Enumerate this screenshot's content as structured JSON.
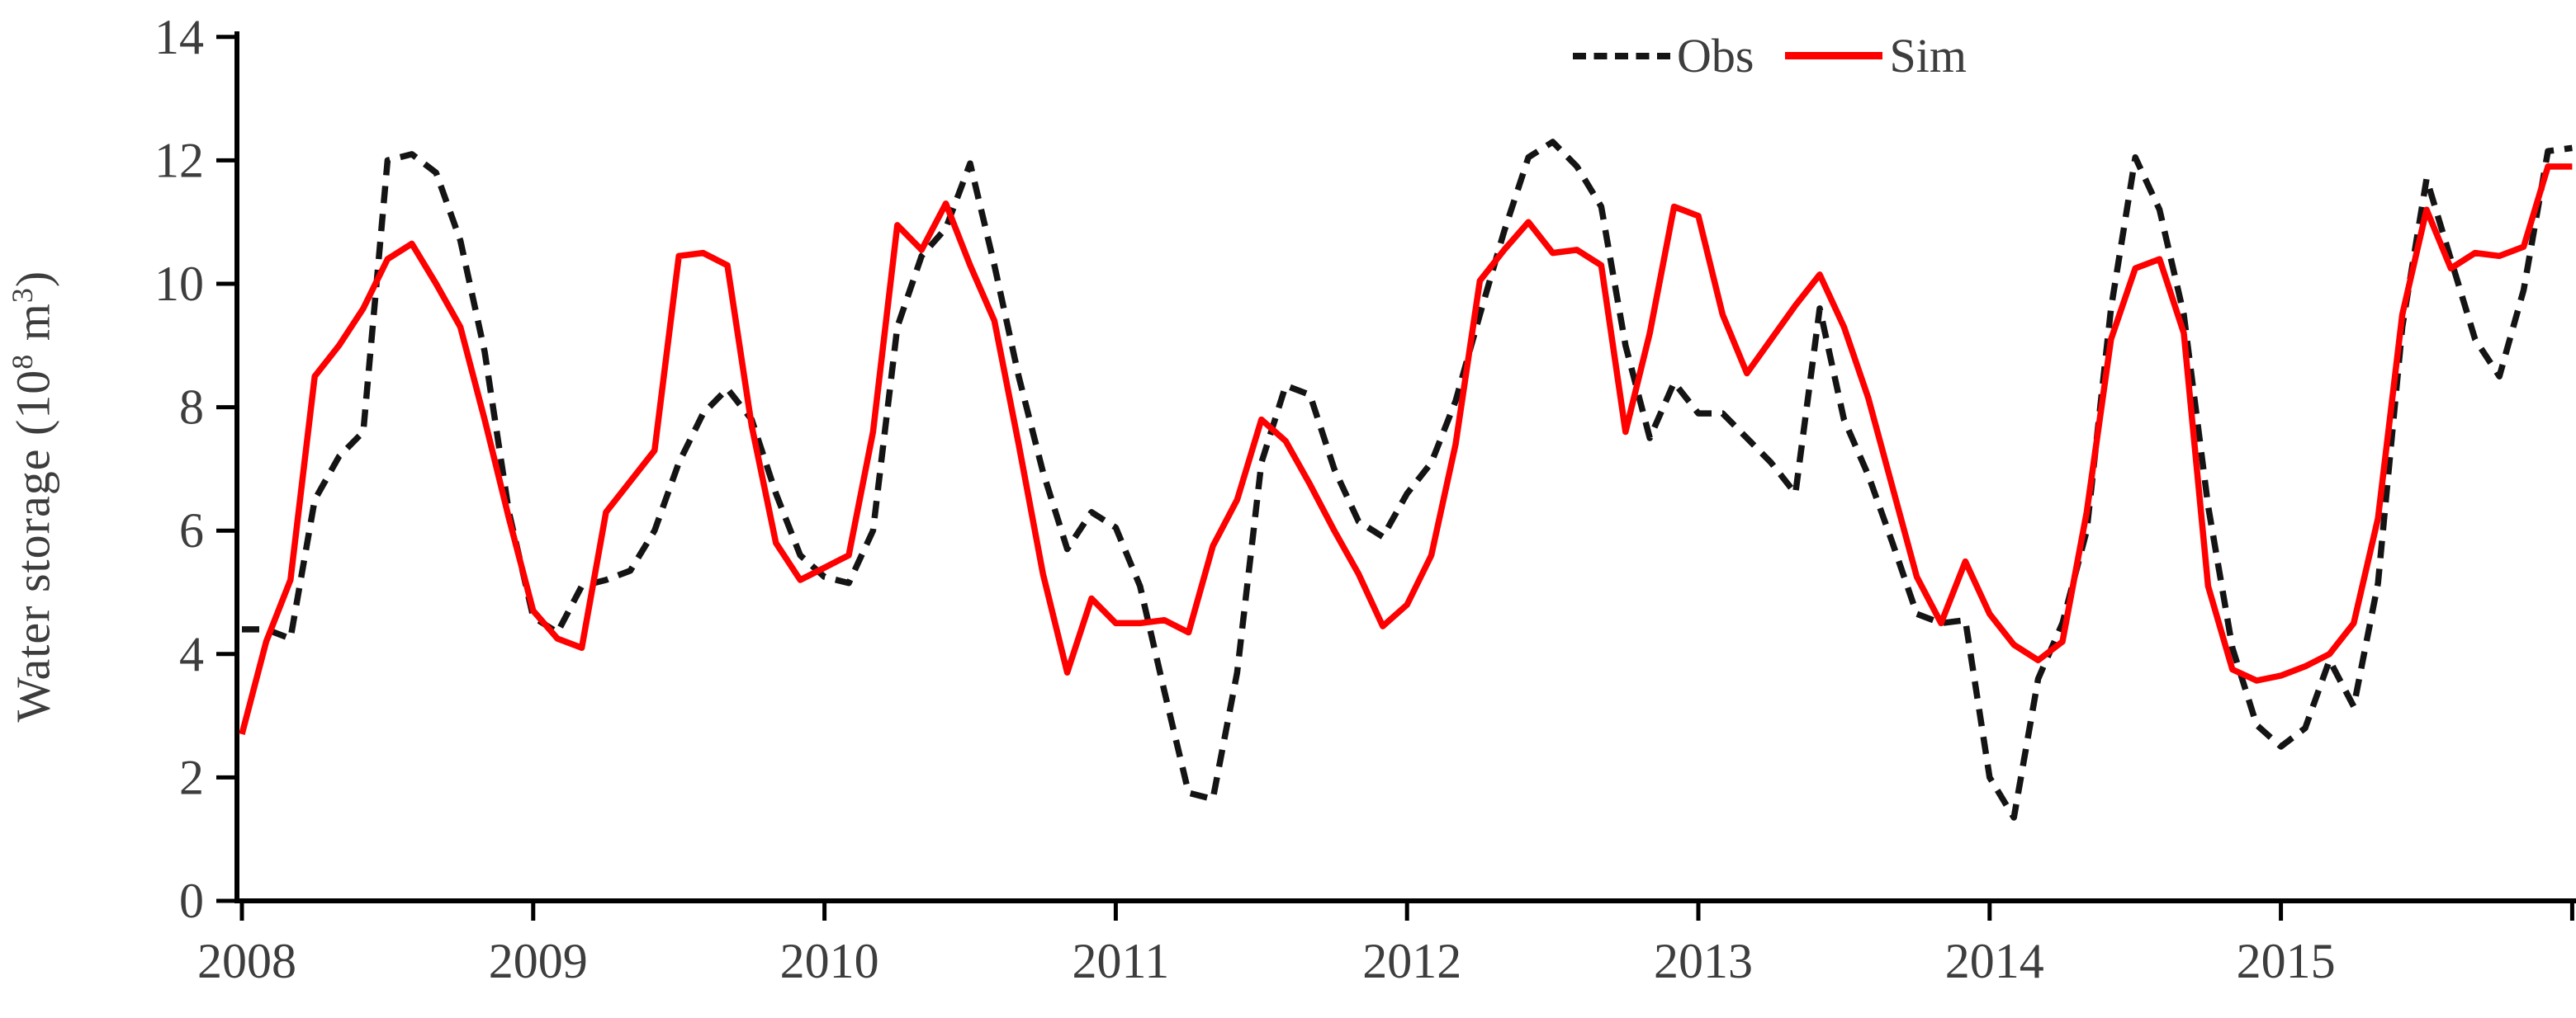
{
  "chart_data": {
    "type": "line",
    "title": "",
    "ylabel": "Water storage (10⁸ m³)",
    "xlabel": "",
    "ylim": [
      0,
      14
    ],
    "y_tick_labels": [
      "0",
      "2",
      "4",
      "6",
      "8",
      "10",
      "12",
      "14"
    ],
    "y_tick_values": [
      0,
      2,
      4,
      6,
      8,
      10,
      12,
      14
    ],
    "x_tick_labels": [
      "2008",
      "2009",
      "2010",
      "2011",
      "2012",
      "2013",
      "2014",
      "2015"
    ],
    "x_axis_note": "monthly points, Jan 2008 through Jan 2016",
    "grid": "off",
    "legend_position": "top-right",
    "series": [
      {
        "name": "Obs",
        "style": "dashed",
        "color": "#141414",
        "values": [
          4.4,
          4.4,
          4.25,
          6.5,
          7.2,
          7.6,
          12.0,
          12.1,
          11.8,
          10.7,
          8.9,
          6.3,
          4.6,
          4.35,
          5.1,
          5.2,
          5.35,
          6.0,
          7.1,
          7.9,
          8.3,
          7.8,
          6.6,
          5.6,
          5.25,
          5.15,
          6.0,
          9.3,
          10.45,
          10.9,
          11.95,
          10.3,
          8.5,
          6.95,
          5.7,
          6.3,
          6.05,
          5.1,
          3.4,
          1.75,
          1.65,
          3.7,
          7.1,
          8.35,
          8.2,
          7.0,
          6.15,
          5.9,
          6.6,
          7.1,
          8.1,
          9.5,
          10.85,
          12.05,
          12.3,
          11.9,
          11.25,
          9.0,
          7.5,
          8.4,
          7.9,
          7.9,
          7.5,
          7.1,
          6.6,
          9.6,
          7.8,
          6.9,
          5.8,
          4.65,
          4.5,
          4.55,
          2.0,
          1.35,
          3.6,
          4.5,
          6.0,
          9.6,
          12.05,
          11.2,
          9.5,
          6.4,
          4.1,
          2.85,
          2.5,
          2.8,
          3.9,
          3.15,
          5.15,
          9.3,
          11.7,
          10.4,
          9.1,
          8.5,
          9.9,
          12.15,
          12.2
        ]
      },
      {
        "name": "Sim",
        "style": "solid",
        "color": "#fe0000",
        "values": [
          2.7,
          4.2,
          5.2,
          8.5,
          9.0,
          9.6,
          10.4,
          10.65,
          10.0,
          9.3,
          7.8,
          6.2,
          4.7,
          4.25,
          4.1,
          6.3,
          6.8,
          7.3,
          10.45,
          10.5,
          10.3,
          7.7,
          5.8,
          5.2,
          5.4,
          5.6,
          7.6,
          10.95,
          10.55,
          11.3,
          10.3,
          9.4,
          7.4,
          5.3,
          3.7,
          4.9,
          4.5,
          4.5,
          4.55,
          4.35,
          5.75,
          6.5,
          7.8,
          7.45,
          6.75,
          6.0,
          5.3,
          4.45,
          4.8,
          5.6,
          7.4,
          10.05,
          10.55,
          11.0,
          10.5,
          10.55,
          10.3,
          7.6,
          9.2,
          11.25,
          11.1,
          9.5,
          8.55,
          9.1,
          9.65,
          10.15,
          9.3,
          8.15,
          6.7,
          5.25,
          4.5,
          5.5,
          4.65,
          4.15,
          3.9,
          4.2,
          6.3,
          9.1,
          10.25,
          10.4,
          9.2,
          5.1,
          3.75,
          3.57,
          3.65,
          3.8,
          4.0,
          4.5,
          6.2,
          9.5,
          11.2,
          10.25,
          10.5,
          10.45,
          10.6,
          11.9,
          11.9
        ]
      }
    ]
  },
  "legend": {
    "obs_label": "Obs",
    "sim_label": "Sim"
  },
  "axis": {
    "y_title": "Water storage (10⁸ m³)",
    "text_color": "#3d3d3d",
    "line_color": "#000000"
  },
  "layout_colors": {
    "background": "#ffffff",
    "obs": "#141414",
    "sim": "#fe0000"
  }
}
